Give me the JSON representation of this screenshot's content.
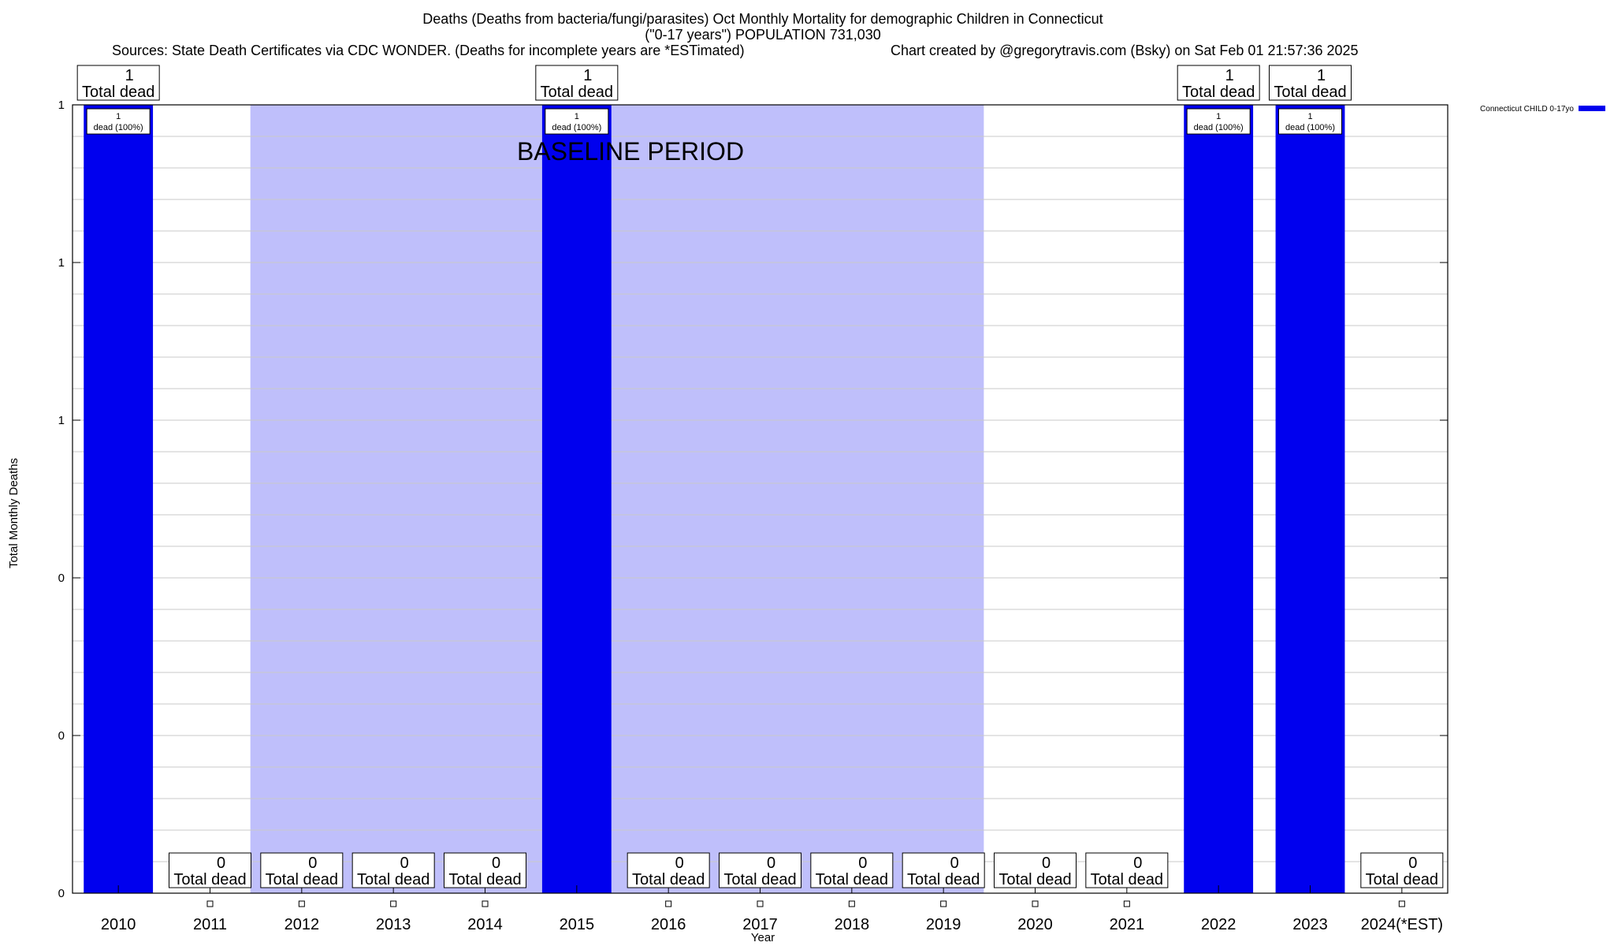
{
  "chart_data": {
    "type": "bar",
    "title_line1": "Deaths (Deaths from bacteria/fungi/parasites) Oct Monthly Mortality for demographic Children in Connecticut",
    "title_line2": "(\"0-17 years\") POPULATION 731,030",
    "sources": "Sources: State Death Certificates via CDC WONDER. (Deaths for incomplete years are *ESTimated)",
    "credit": "Chart created by @gregorytravis.com (Bsky) on Sat Feb 01 21:57:36 2025",
    "xlabel": "Year",
    "ylabel": "Total Monthly Deaths",
    "ylim": [
      0,
      1
    ],
    "ytick_values": [
      0,
      0.2,
      0.4,
      0.6,
      0.8,
      1.0
    ],
    "ytick_labels": [
      "0",
      "0",
      "0",
      "1",
      "1",
      "1"
    ],
    "categories": [
      "2010",
      "2011",
      "2012",
      "2013",
      "2014",
      "2015",
      "2016",
      "2017",
      "2018",
      "2019",
      "2020",
      "2021",
      "2022",
      "2023",
      "2024(*EST)"
    ],
    "series": [
      {
        "name": "Connecticut CHILD 0-17yo",
        "color": "#0000ee",
        "values": [
          1,
          0,
          0,
          0,
          0,
          1,
          0,
          0,
          0,
          0,
          0,
          0,
          1,
          1,
          0
        ]
      }
    ],
    "total_labels": [
      "1",
      "0",
      "0",
      "0",
      "0",
      "1",
      "0",
      "0",
      "0",
      "0",
      "0",
      "0",
      "1",
      "1",
      "0"
    ],
    "total_suffix": "Total dead",
    "bar_labels": [
      "1",
      "",
      "",
      "",
      "",
      "1",
      "",
      "",
      "",
      "",
      "",
      "",
      "1",
      "1",
      ""
    ],
    "bar_label_suffix": "dead (100%)",
    "baseline": {
      "label": "BASELINE PERIOD",
      "start": "2012",
      "end": "2019",
      "color": "#bfbffb"
    },
    "legend_position": "top-right",
    "grid": true
  }
}
